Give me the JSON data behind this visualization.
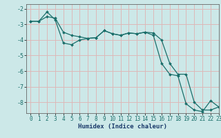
{
  "xlabel": "Humidex (Indice chaleur)",
  "ylabel": "",
  "background_color": "#cce8e8",
  "grid_color": "#ddb8b8",
  "line_color": "#1a6e6a",
  "marker": "D",
  "markersize": 2.0,
  "linewidth": 0.9,
  "xlim": [
    -0.5,
    23
  ],
  "ylim": [
    -8.7,
    -1.7
  ],
  "yticks": [
    -8,
    -7,
    -6,
    -5,
    -4,
    -3,
    -2
  ],
  "xticks": [
    0,
    1,
    2,
    3,
    4,
    5,
    6,
    7,
    8,
    9,
    10,
    11,
    12,
    13,
    14,
    15,
    16,
    17,
    18,
    19,
    20,
    21,
    22,
    23
  ],
  "line1_x": [
    0,
    1,
    2,
    3,
    4,
    5,
    6,
    7,
    8,
    9,
    10,
    11,
    12,
    13,
    14,
    15,
    16,
    17,
    18,
    19,
    20,
    21,
    22,
    23
  ],
  "line1_y": [
    -2.8,
    -2.8,
    -2.5,
    -2.6,
    -3.5,
    -3.7,
    -3.8,
    -3.9,
    -3.85,
    -3.4,
    -3.6,
    -3.7,
    -3.55,
    -3.6,
    -3.5,
    -3.55,
    -4.0,
    -5.5,
    -6.2,
    -6.2,
    -8.0,
    -8.5,
    -8.5,
    -8.3
  ],
  "line2_x": [
    0,
    1,
    2,
    3,
    4,
    5,
    6,
    7,
    8,
    9,
    10,
    11,
    12,
    13,
    14,
    15,
    16,
    17,
    18,
    19,
    20,
    21,
    22,
    23
  ],
  "line2_y": [
    -2.8,
    -2.8,
    -2.2,
    -2.7,
    -4.2,
    -4.3,
    -4.0,
    -3.9,
    -3.85,
    -3.4,
    -3.6,
    -3.7,
    -3.55,
    -3.6,
    -3.5,
    -3.7,
    -5.5,
    -6.2,
    -6.3,
    -8.1,
    -8.5,
    -8.6,
    -7.9,
    -8.3
  ],
  "tick_fontsize": 5.5,
  "xlabel_fontsize": 6.5,
  "xlabel_color": "#1a3a6a",
  "spine_color": "#666666"
}
